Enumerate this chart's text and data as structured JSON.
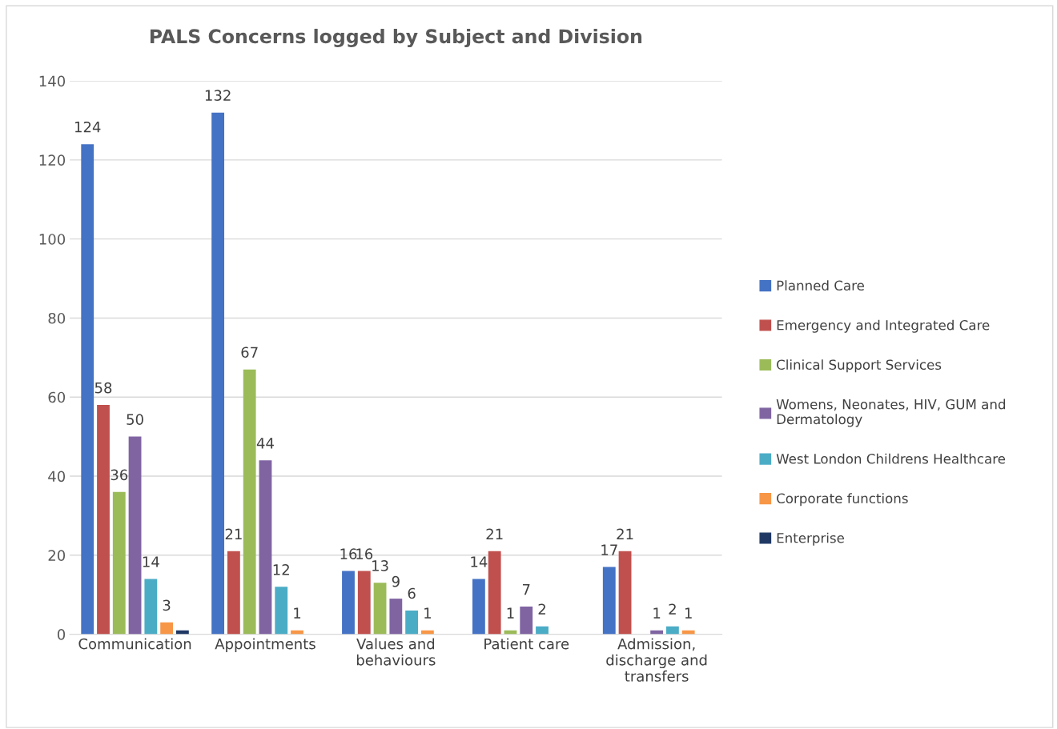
{
  "chart_data": {
    "type": "bar",
    "title": "PALS Concerns logged by Subject and Division",
    "categories": [
      "Communication",
      "Appointments",
      "Values and behaviours",
      "Patient care",
      "Admission, discharge and transfers"
    ],
    "series": [
      {
        "name": "Planned Care",
        "color": "#4472c4",
        "values": [
          124,
          132,
          16,
          14,
          17
        ],
        "value_labels": [
          "124",
          "132",
          "16",
          "14",
          "17"
        ]
      },
      {
        "name": "Emergency and Integrated Care",
        "color": "#c0504d",
        "values": [
          58,
          21,
          16,
          21,
          21
        ],
        "value_labels": [
          "58",
          "21",
          "16",
          "21",
          "21"
        ]
      },
      {
        "name": "Clinical Support Services",
        "color": "#9bbb59",
        "values": [
          36,
          67,
          13,
          1,
          0
        ],
        "value_labels": [
          "36",
          "67",
          "13",
          "1",
          null
        ]
      },
      {
        "name": "Womens, Neonates, HIV, GUM and Dermatology",
        "color": "#8064a2",
        "values": [
          50,
          44,
          9,
          7,
          1
        ],
        "value_labels": [
          "50",
          "44",
          "9",
          "7",
          "1"
        ]
      },
      {
        "name": "West London Childrens Healthcare",
        "color": "#4bacc6",
        "values": [
          14,
          12,
          6,
          2,
          2
        ],
        "value_labels": [
          "14",
          "12",
          "6",
          "2",
          "2"
        ]
      },
      {
        "name": "Corporate functions",
        "color": "#f79646",
        "values": [
          3,
          1,
          1,
          0,
          1
        ],
        "value_labels": [
          "3",
          "1",
          "1",
          null,
          "1"
        ]
      },
      {
        "name": "Enterprise",
        "color": "#1f3864",
        "values": [
          1,
          0,
          0,
          0,
          0
        ],
        "value_labels": [
          null,
          null,
          null,
          null,
          null
        ]
      }
    ],
    "ylim": [
      0,
      140
    ],
    "yticks": [
      0,
      20,
      40,
      60,
      80,
      100,
      120,
      140
    ],
    "grid": "y",
    "legend": "right"
  }
}
